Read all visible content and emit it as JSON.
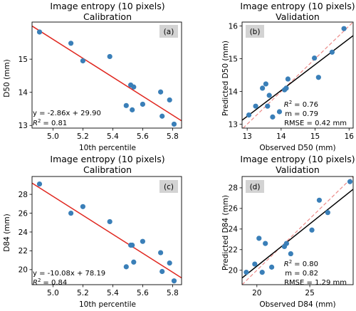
{
  "colors": {
    "points": "#3a7fb8",
    "fit_calibration": "#e0271f",
    "fit_validation": "#000000",
    "identity_line": "#ec8a88",
    "tag_box": "#d3d3d3"
  },
  "chart_data": [
    {
      "type": "scatter",
      "panel_label": "(a)",
      "title_line1": "Image entropy (10 pixels)",
      "title_line2": "Calibration",
      "xlabel": "10th percentile",
      "ylabel": "D50 (mm)",
      "xlim": [
        4.86,
        5.86
      ],
      "ylim": [
        12.92,
        16.12
      ],
      "xticks": [
        5.0,
        5.2,
        5.4,
        5.6,
        5.8
      ],
      "xtick_labels": [
        "5.0",
        "5.2",
        "5.4",
        "5.6",
        "5.8"
      ],
      "yticks": [
        13,
        14,
        15
      ],
      "ytick_labels": [
        "13",
        "14",
        "15"
      ],
      "grid": false,
      "fit": {
        "slope": -2.86,
        "intercept": 29.9,
        "x_range": [
          4.86,
          5.86
        ],
        "style": "solid"
      },
      "identity": false,
      "annotations": {
        "equation": "y = -2.86x + 29.90",
        "r2_label": "R",
        "r2_value": "= 0.81"
      },
      "points": {
        "x": [
          4.91,
          5.12,
          5.2,
          5.38,
          5.49,
          5.52,
          5.53,
          5.54,
          5.6,
          5.72,
          5.73,
          5.78,
          5.81
        ],
        "y": [
          15.82,
          15.48,
          14.95,
          15.08,
          13.6,
          14.22,
          13.47,
          14.16,
          13.64,
          14.01,
          13.28,
          13.77,
          13.04
        ]
      }
    },
    {
      "type": "scatter",
      "panel_label": "(b)",
      "title_line1": "Image entropy (10 pixels)",
      "title_line2": "Validation",
      "xlabel": "Observed D50 (mm)",
      "ylabel": "Predicted D50 (mm)",
      "xlim": [
        12.85,
        16.12
      ],
      "ylim": [
        12.88,
        16.12
      ],
      "xticks": [
        13,
        14,
        15,
        16
      ],
      "xtick_labels": [
        "13",
        "14",
        "15",
        "16"
      ],
      "yticks": [
        13,
        14,
        15,
        16
      ],
      "ytick_labels": [
        "13",
        "14",
        "15",
        "16"
      ],
      "grid": false,
      "fit": {
        "slope": 0.79,
        "intercept": 2.97,
        "x_range": [
          12.85,
          16.12
        ],
        "style": "solid"
      },
      "identity": true,
      "annotations": {
        "r2_label": "R",
        "r2_value": "= 0.76",
        "m_line": "m = 0.79",
        "rmse_line": "RMSE = 0.42 mm"
      },
      "points": {
        "x": [
          13.05,
          13.25,
          13.45,
          13.55,
          13.6,
          13.65,
          13.75,
          13.95,
          14.1,
          14.15,
          14.2,
          14.98,
          15.1,
          15.5,
          15.85
        ],
        "y": [
          13.28,
          13.55,
          14.1,
          14.23,
          13.55,
          13.88,
          13.22,
          13.38,
          14.05,
          14.1,
          14.38,
          15.02,
          14.43,
          15.2,
          15.92
        ]
      }
    },
    {
      "type": "scatter",
      "panel_label": "(c)",
      "title_line1": "Image entropy (10 pixels)",
      "title_line2": "Calibration",
      "xlabel": "10th percentile",
      "ylabel": "D84 (mm)",
      "xlim": [
        4.86,
        5.86
      ],
      "ylim": [
        18.4,
        29.9
      ],
      "xticks": [
        5.0,
        5.2,
        5.4,
        5.6,
        5.8
      ],
      "xtick_labels": [
        "5.0",
        "5.2",
        "5.4",
        "5.6",
        "5.8"
      ],
      "yticks": [
        20,
        22,
        24,
        26,
        28
      ],
      "ytick_labels": [
        "20",
        "22",
        "24",
        "26",
        "28"
      ],
      "grid": false,
      "fit": {
        "slope": -10.08,
        "intercept": 78.19,
        "x_range": [
          4.86,
          5.86
        ],
        "style": "solid"
      },
      "identity": false,
      "annotations": {
        "equation": "y = -10.08x + 78.19",
        "r2_label": "R",
        "r2_value": "= 0.84"
      },
      "points": {
        "x": [
          4.91,
          5.12,
          5.2,
          5.38,
          5.49,
          5.52,
          5.53,
          5.54,
          5.6,
          5.72,
          5.73,
          5.78,
          5.81
        ],
        "y": [
          29.1,
          26.0,
          26.7,
          25.1,
          20.3,
          22.6,
          22.6,
          20.8,
          23.0,
          21.8,
          19.8,
          20.7,
          18.8
        ]
      }
    },
    {
      "type": "scatter",
      "panel_label": "(d)",
      "title_line1": "Image entropy (10 pixels)",
      "title_line2": "Validation",
      "xlabel": "Observed D84 (mm)",
      "ylabel": "Predicted D84 (mm)",
      "xlim": [
        18.6,
        29.1
      ],
      "ylim": [
        18.6,
        29.1
      ],
      "xticks": [
        20,
        25
      ],
      "xtick_labels": [
        "20",
        "25"
      ],
      "yticks": [
        20,
        22,
        24,
        26,
        28
      ],
      "ytick_labels": [
        "20",
        "22",
        "24",
        "26",
        "28"
      ],
      "grid": false,
      "fit": {
        "slope": 0.82,
        "intercept": 4.0,
        "x_range": [
          18.6,
          29.1
        ],
        "style": "solid"
      },
      "identity": true,
      "annotations": {
        "r2_label": "R",
        "r2_value": "= 0.80",
        "m_line": "m = 0.82",
        "rmse_line": "RMSE = 1.29 mm"
      },
      "points": {
        "x": [
          19.0,
          19.8,
          20.2,
          20.5,
          20.8,
          21.4,
          22.6,
          22.8,
          23.2,
          25.2,
          25.9,
          26.7,
          28.8
        ],
        "y": [
          19.8,
          20.6,
          23.1,
          19.8,
          22.6,
          20.3,
          22.3,
          22.6,
          21.6,
          23.9,
          26.8,
          25.6,
          28.6
        ]
      }
    }
  ]
}
